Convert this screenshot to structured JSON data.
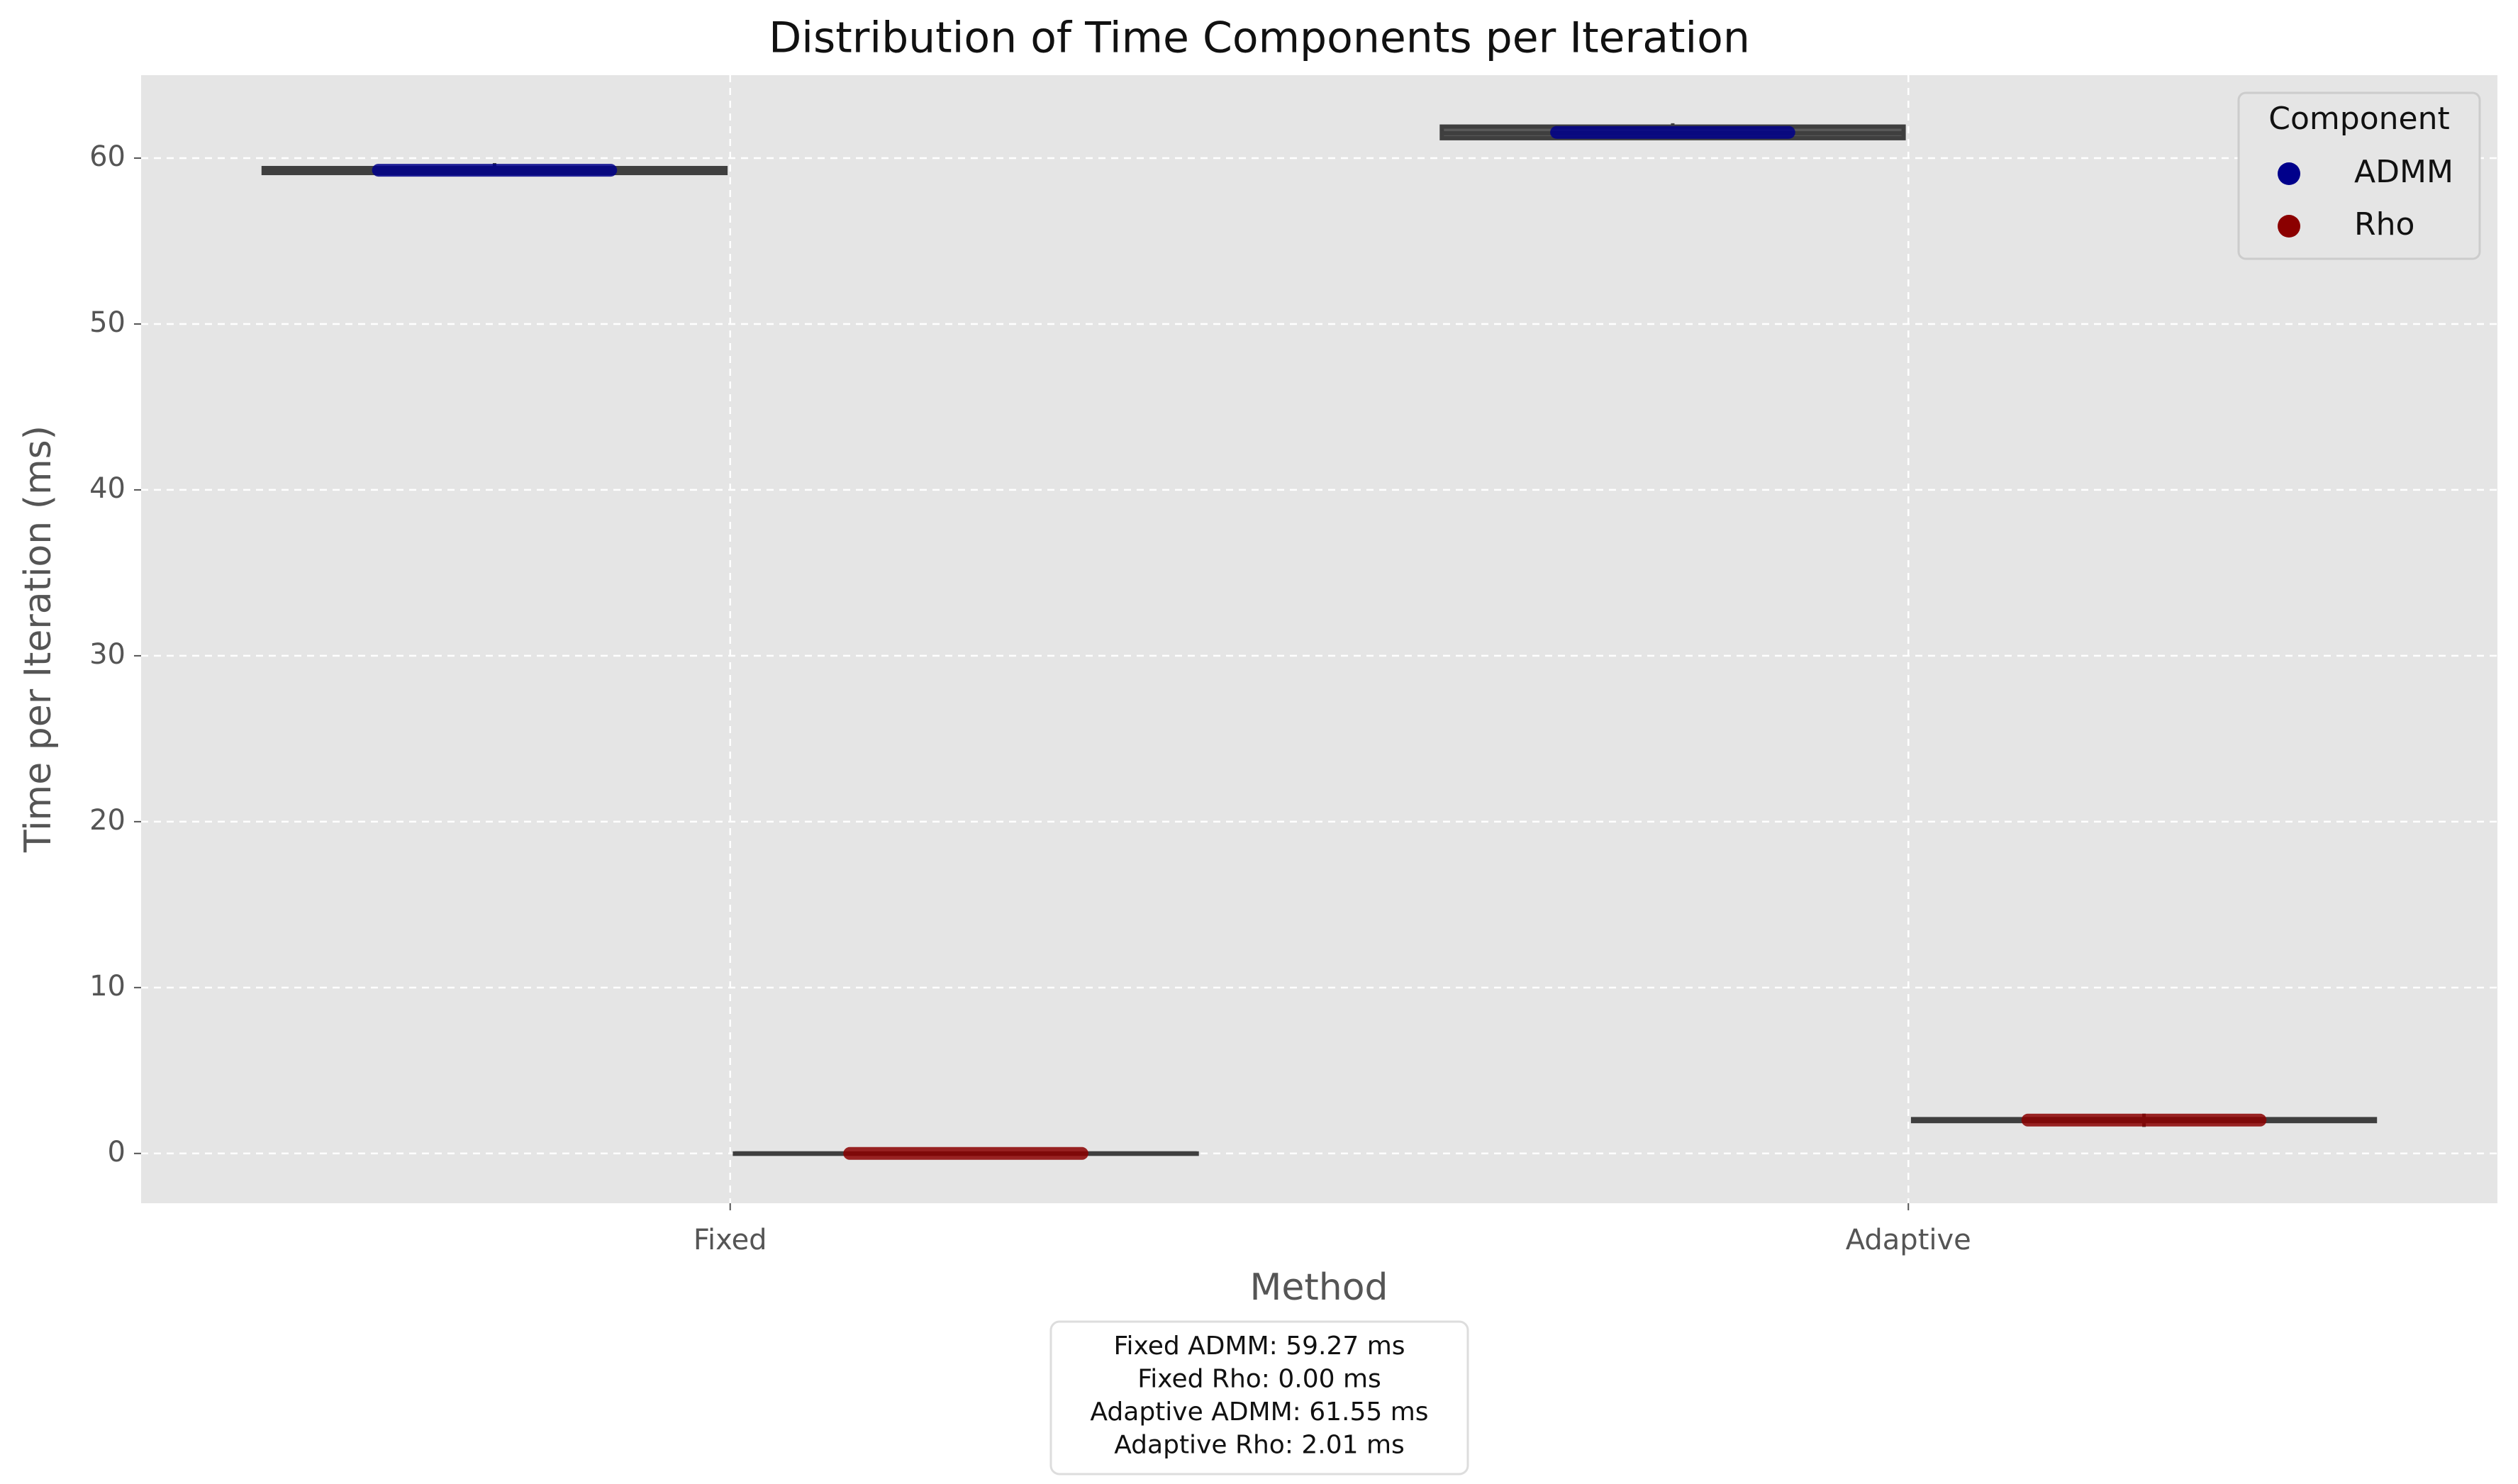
{
  "chart_data": {
    "type": "box",
    "title": "Distribution of Time Components per Iteration",
    "x_label": "Method",
    "y_label": "Time per Iteration (ms)",
    "categories": [
      "Fixed",
      "Adaptive"
    ],
    "series": [
      {
        "name": "ADMM",
        "color": "#00008b",
        "values": [
          59.27,
          61.55
        ],
        "q1": [
          59.1,
          61.2
        ],
        "medians": [
          59.25,
          61.5
        ],
        "q3": [
          59.4,
          61.9
        ],
        "whislo": [
          59.0,
          61.1
        ],
        "whishi": [
          59.7,
          62.1
        ]
      },
      {
        "name": "Rho",
        "color": "#8b0000",
        "values": [
          0.0,
          2.01
        ],
        "q1": [
          0.0,
          1.95
        ],
        "medians": [
          0.0,
          2.0
        ],
        "q3": [
          0.0,
          2.07
        ],
        "whislo": [
          0.0,
          1.6
        ],
        "whishi": [
          0.0,
          2.4
        ]
      }
    ],
    "ylim": [
      -3,
      65
    ],
    "yticks": [
      0,
      10,
      20,
      30,
      40,
      50,
      60
    ],
    "grid": true,
    "legend_title": "Component",
    "legend_position": "upper right",
    "annotation": [
      "Fixed ADMM: 59.27 ms",
      "Fixed Rho: 0.00 ms",
      "Adaptive ADMM: 61.55 ms",
      "Adaptive Rho: 2.01 ms"
    ]
  }
}
